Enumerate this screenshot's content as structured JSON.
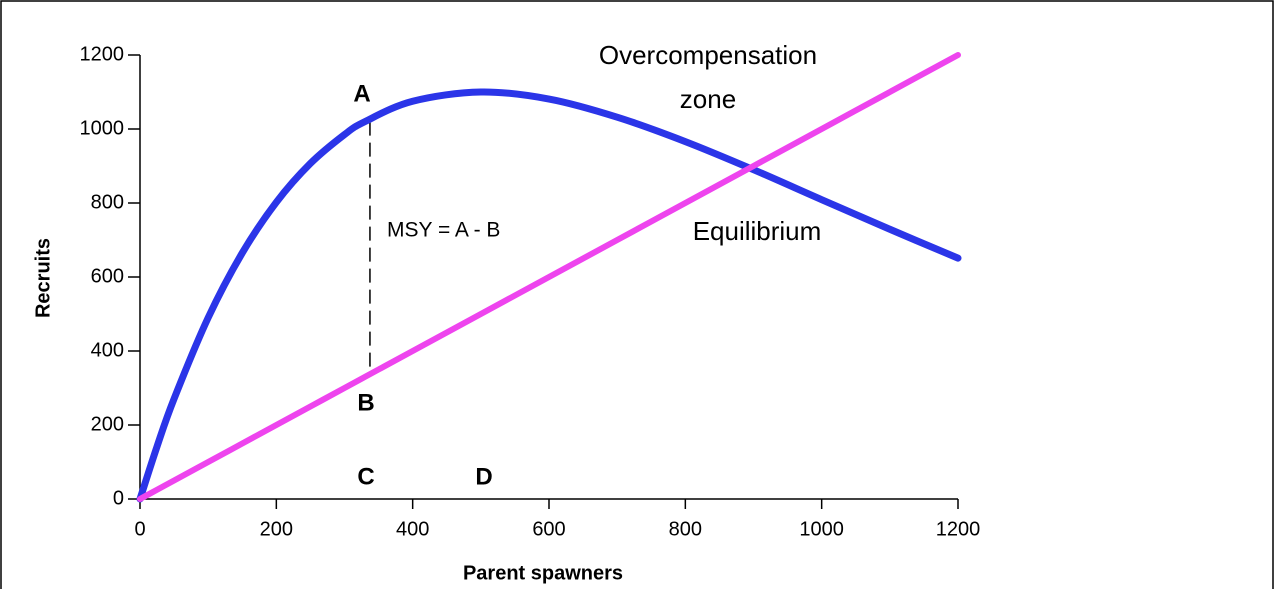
{
  "chart_data": {
    "type": "line",
    "x_label": "Parent spawners",
    "y_label": "Recruits",
    "x": [
      0,
      25,
      50,
      100,
      150,
      200,
      250,
      300,
      330,
      400,
      500,
      600,
      700,
      800,
      900,
      1000,
      1100,
      1200
    ],
    "series": [
      {
        "color": "#2b35e8",
        "values": [
          0,
          142,
          271,
          490,
          665,
          802,
          907,
          985,
          1020,
          1075,
          1100,
          1081,
          1032,
          966,
          890,
          809,
          729,
          651
        ]
      },
      {
        "color": "#ee44ee",
        "values": [
          0,
          25,
          50,
          100,
          150,
          200,
          250,
          300,
          330,
          400,
          500,
          600,
          700,
          800,
          900,
          1000,
          1100,
          1200
        ]
      }
    ],
    "xlim": [
      0,
      1200
    ],
    "ylim": [
      0,
      1200
    ],
    "xticks": [
      0,
      200,
      400,
      600,
      800,
      1000,
      1200
    ],
    "yticks": [
      0,
      200,
      400,
      600,
      800,
      1000,
      1200
    ],
    "annotations": [
      "Overcompensation",
      "zone",
      "A",
      "B",
      "C",
      "D",
      "MSY = A - B",
      "Equilibrium"
    ]
  }
}
